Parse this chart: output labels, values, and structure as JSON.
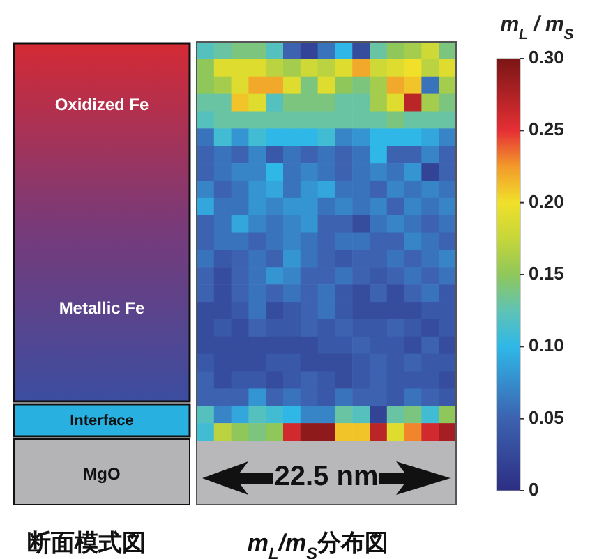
{
  "chart_data": {
    "type": "heatmap",
    "categories": [
      null,
      null,
      null,
      null,
      null,
      null,
      null,
      null,
      null,
      null,
      null,
      null,
      null,
      null,
      null
    ],
    "y_categories": [
      null,
      null,
      null,
      null,
      null,
      null,
      null,
      null,
      null,
      null,
      null,
      null,
      null,
      null,
      null,
      null,
      null,
      null,
      null,
      null,
      null,
      null,
      null
    ],
    "cells": [
      [
        0.12,
        0.13,
        0.14,
        0.14,
        0.12,
        0.05,
        0.02,
        0.06,
        0.1,
        0.03,
        0.13,
        0.15,
        0.16,
        0.18,
        0.14
      ],
      [
        0.15,
        0.19,
        0.19,
        0.19,
        0.17,
        0.16,
        0.18,
        0.17,
        0.19,
        0.22,
        0.18,
        0.19,
        0.2,
        0.17,
        0.19
      ],
      [
        0.15,
        0.16,
        0.19,
        0.22,
        0.22,
        0.19,
        0.14,
        0.19,
        0.15,
        0.14,
        0.16,
        0.22,
        0.21,
        0.06,
        0.16
      ],
      [
        0.13,
        0.13,
        0.21,
        0.19,
        0.12,
        0.14,
        0.14,
        0.14,
        0.13,
        0.13,
        0.16,
        0.19,
        0.27,
        0.16,
        0.14
      ],
      [
        0.12,
        0.13,
        0.13,
        0.13,
        0.13,
        0.13,
        0.13,
        0.13,
        0.13,
        0.13,
        0.13,
        0.14,
        0.13,
        0.13,
        0.13
      ],
      [
        0.06,
        0.11,
        0.08,
        0.11,
        0.1,
        0.1,
        0.1,
        0.11,
        0.07,
        0.08,
        0.1,
        0.1,
        0.1,
        0.09,
        0.07
      ],
      [
        0.05,
        0.06,
        0.05,
        0.07,
        0.04,
        0.06,
        0.05,
        0.06,
        0.05,
        0.06,
        0.1,
        0.05,
        0.05,
        0.07,
        0.05
      ],
      [
        0.05,
        0.06,
        0.07,
        0.07,
        0.1,
        0.06,
        0.07,
        0.06,
        0.05,
        0.06,
        0.07,
        0.06,
        0.08,
        0.02,
        0.05
      ],
      [
        0.07,
        0.05,
        0.06,
        0.08,
        0.09,
        0.06,
        0.08,
        0.09,
        0.06,
        0.06,
        0.05,
        0.07,
        0.06,
        0.07,
        0.06
      ],
      [
        0.09,
        0.06,
        0.06,
        0.08,
        0.07,
        0.08,
        0.08,
        0.06,
        0.07,
        0.06,
        0.07,
        0.05,
        0.07,
        0.06,
        0.07
      ],
      [
        0.05,
        0.06,
        0.09,
        0.07,
        0.06,
        0.07,
        0.08,
        0.05,
        0.05,
        0.03,
        0.06,
        0.07,
        0.06,
        0.05,
        0.06
      ],
      [
        0.05,
        0.06,
        0.06,
        0.05,
        0.06,
        0.07,
        0.06,
        0.05,
        0.06,
        0.06,
        0.05,
        0.05,
        0.07,
        0.06,
        0.05
      ],
      [
        0.06,
        0.04,
        0.05,
        0.06,
        0.05,
        0.08,
        0.06,
        0.05,
        0.04,
        0.05,
        0.05,
        0.06,
        0.05,
        0.06,
        0.07
      ],
      [
        0.05,
        0.03,
        0.05,
        0.06,
        0.08,
        0.07,
        0.05,
        0.05,
        0.06,
        0.05,
        0.04,
        0.05,
        0.06,
        0.05,
        0.06
      ],
      [
        0.05,
        0.03,
        0.05,
        0.06,
        0.05,
        0.06,
        0.05,
        0.06,
        0.04,
        0.03,
        0.05,
        0.03,
        0.05,
        0.06,
        0.04
      ],
      [
        0.03,
        0.03,
        0.04,
        0.06,
        0.03,
        0.04,
        0.05,
        0.06,
        0.04,
        0.03,
        0.03,
        0.03,
        0.03,
        0.04,
        0.04
      ],
      [
        0.03,
        0.04,
        0.03,
        0.05,
        0.04,
        0.04,
        0.05,
        0.04,
        0.05,
        0.04,
        0.04,
        0.05,
        0.04,
        0.03,
        0.04
      ],
      [
        0.03,
        0.03,
        0.03,
        0.03,
        0.03,
        0.03,
        0.03,
        0.04,
        0.04,
        0.05,
        0.04,
        0.04,
        0.03,
        0.05,
        0.03
      ],
      [
        0.04,
        0.03,
        0.03,
        0.03,
        0.04,
        0.04,
        0.03,
        0.03,
        0.03,
        0.04,
        0.05,
        0.04,
        0.05,
        0.04,
        0.04
      ],
      [
        0.05,
        0.03,
        0.04,
        0.04,
        0.03,
        0.04,
        0.05,
        0.04,
        0.03,
        0.04,
        0.05,
        0.04,
        0.04,
        0.04,
        0.03
      ],
      [
        0.05,
        0.05,
        0.05,
        0.08,
        0.05,
        0.06,
        0.05,
        0.04,
        0.06,
        0.05,
        0.05,
        0.04,
        0.06,
        0.05,
        0.04
      ],
      [
        0.12,
        0.07,
        0.09,
        0.12,
        0.11,
        0.1,
        0.07,
        0.07,
        0.13,
        0.12,
        0.02,
        0.13,
        0.14,
        0.11,
        0.15
      ],
      [
        0.11,
        0.17,
        0.15,
        0.14,
        0.15,
        0.26,
        0.29,
        0.29,
        0.21,
        0.21,
        0.27,
        0.19,
        0.23,
        0.26,
        0.28
      ]
    ],
    "clabel": "m$_{L}$ / m$_{S}$",
    "clim": [
      0,
      0.3
    ],
    "cticks": [
      0,
      0.05,
      {
        "value": 0.1,
        "label": "0.10"
      },
      0.15,
      {
        "value": 0.2,
        "label": "0.20"
      },
      0.25,
      {
        "value": 0.3,
        "label": "0.30"
      }
    ],
    "annotations": [
      "Oxidized Fe",
      "Metallic Fe",
      "Interface",
      "MgO",
      "22.5 nm",
      "断面模式図",
      "m$_{L}$/m$_{S}$分布図"
    ]
  }
}
